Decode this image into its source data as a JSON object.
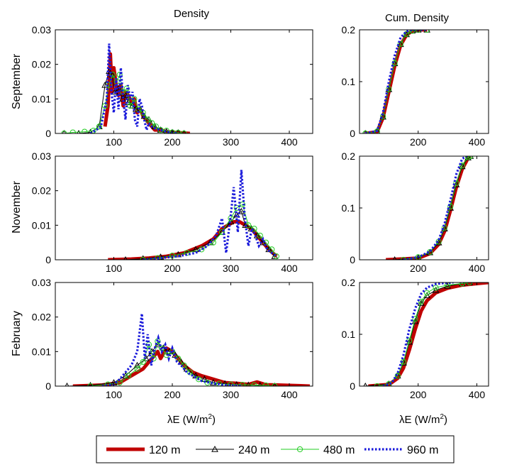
{
  "figure": {
    "col_titles": [
      "Density",
      "Cum. Density"
    ],
    "row_titles": [
      "September",
      "November",
      "February"
    ],
    "xlabel_main": "λE (W/m",
    "xlabel_sup": "2",
    "xlabel_close": ")"
  },
  "legend": {
    "items": [
      {
        "label": "120 m",
        "color": "#c00000",
        "style": "thick-solid",
        "marker": "none"
      },
      {
        "label": "240 m",
        "color": "#000000",
        "style": "thin-solid",
        "marker": "triangle"
      },
      {
        "label": "480 m",
        "color": "#22cc22",
        "style": "thin-solid",
        "marker": "circle"
      },
      {
        "label": "960 m",
        "color": "#1a1adb",
        "style": "dotted",
        "marker": "none"
      }
    ]
  },
  "chart_data": [
    {
      "type": "line",
      "panel": "September density",
      "xlim": [
        0,
        440
      ],
      "ylim": [
        0,
        0.03
      ],
      "xticks": [
        100,
        200,
        300,
        400
      ],
      "yticks": [
        0,
        0.01,
        0.02,
        0.03
      ],
      "ytick_labels": [
        "0",
        "0.01",
        "0.02",
        "0.03"
      ],
      "series": [
        {
          "name": "120 m",
          "x": [
            85,
            90,
            94,
            97,
            100,
            104,
            108,
            112,
            116,
            120,
            125,
            130,
            135,
            140,
            145,
            150,
            155,
            160,
            165,
            170,
            180,
            190,
            200,
            210,
            220,
            230
          ],
          "y": [
            0.002,
            0.008,
            0.023,
            0.012,
            0.019,
            0.014,
            0.011,
            0.014,
            0.008,
            0.012,
            0.011,
            0.009,
            0.01,
            0.006,
            0.007,
            0.005,
            0.004,
            0.003,
            0.002,
            0.001,
            0.001,
            0.0005,
            0.0003,
            0.0002,
            0.0001,
            0
          ]
        },
        {
          "name": "240 m",
          "x": [
            15,
            40,
            60,
            75,
            85,
            92,
            97,
            102,
            108,
            115,
            120,
            125,
            132,
            138,
            145,
            152,
            160,
            170,
            180,
            190,
            200,
            210,
            220
          ],
          "y": [
            0,
            0,
            0.0003,
            0.002,
            0.014,
            0.018,
            0.017,
            0.012,
            0.013,
            0.01,
            0.011,
            0.009,
            0.008,
            0.007,
            0.007,
            0.005,
            0.004,
            0.002,
            0.001,
            0.0005,
            0.0003,
            0.0002,
            0
          ]
        },
        {
          "name": "480 m",
          "x": [
            15,
            30,
            50,
            65,
            75,
            85,
            92,
            98,
            105,
            110,
            115,
            122,
            128,
            135,
            142,
            150,
            158,
            165,
            172,
            180,
            190,
            200,
            210,
            220
          ],
          "y": [
            0,
            0.0003,
            0.0005,
            0.0008,
            0.002,
            0.008,
            0.014,
            0.017,
            0.015,
            0.017,
            0.012,
            0.013,
            0.008,
            0.01,
            0.007,
            0.006,
            0.004,
            0.003,
            0.002,
            0.001,
            0.0008,
            0.0003,
            0.0002,
            0
          ]
        },
        {
          "name": "960 m",
          "x": [
            60,
            70,
            78,
            83,
            88,
            92,
            96,
            100,
            104,
            108,
            112,
            116,
            120,
            124,
            128,
            132,
            136,
            140,
            144,
            148,
            152,
            156,
            160,
            165,
            170,
            180,
            190,
            200,
            210
          ],
          "y": [
            0,
            0.001,
            0.002,
            0.006,
            0.01,
            0.026,
            0.012,
            0.006,
            0.016,
            0.007,
            0.019,
            0.01,
            0.004,
            0.014,
            0.01,
            0.012,
            0.004,
            0.002,
            0.01,
            0.008,
            0.004,
            0.001,
            0.003,
            0.002,
            0.0015,
            0.001,
            0.0005,
            0.0002,
            0
          ]
        }
      ]
    },
    {
      "type": "line",
      "panel": "September cumulative density",
      "xlim": [
        0,
        440
      ],
      "ylim": [
        0,
        0.2
      ],
      "xticks": [
        200,
        400
      ],
      "yticks": [
        0,
        0.1,
        0.2
      ],
      "ytick_labels": [
        "0",
        "0.1",
        "0.2"
      ],
      "series": [
        {
          "name": "120 m",
          "x": [
            20,
            60,
            80,
            100,
            120,
            140,
            160,
            180,
            200,
            230
          ],
          "y": [
            0,
            0.003,
            0.03,
            0.08,
            0.13,
            0.17,
            0.19,
            0.198,
            0.2,
            0.2
          ]
        },
        {
          "name": "240 m",
          "x": [
            20,
            60,
            80,
            100,
            120,
            140,
            160,
            180,
            200,
            230
          ],
          "y": [
            0,
            0.004,
            0.032,
            0.085,
            0.135,
            0.172,
            0.191,
            0.198,
            0.2,
            0.2
          ]
        },
        {
          "name": "480 m",
          "x": [
            20,
            60,
            80,
            100,
            120,
            140,
            160,
            180,
            200,
            230
          ],
          "y": [
            0,
            0.004,
            0.033,
            0.086,
            0.136,
            0.173,
            0.192,
            0.198,
            0.2,
            0.2
          ]
        },
        {
          "name": "960 m",
          "x": [
            20,
            60,
            80,
            100,
            120,
            140,
            160,
            180,
            200,
            230
          ],
          "y": [
            0,
            0.005,
            0.04,
            0.1,
            0.15,
            0.185,
            0.197,
            0.2,
            0.2,
            0.2
          ]
        }
      ]
    },
    {
      "type": "line",
      "panel": "November density",
      "xlim": [
        0,
        440
      ],
      "ylim": [
        0,
        0.03
      ],
      "xticks": [
        100,
        200,
        300,
        400
      ],
      "yticks": [
        0,
        0.01,
        0.02,
        0.03
      ],
      "ytick_labels": [
        "0",
        "0.01",
        "0.02",
        "0.03"
      ],
      "series": [
        {
          "name": "120 m",
          "x": [
            90,
            130,
            160,
            190,
            220,
            250,
            270,
            285,
            295,
            305,
            315,
            325,
            335,
            345,
            355,
            365,
            378
          ],
          "y": [
            0,
            0.0002,
            0.0005,
            0.001,
            0.002,
            0.004,
            0.006,
            0.009,
            0.01,
            0.011,
            0.011,
            0.01,
            0.009,
            0.007,
            0.005,
            0.003,
            0.001
          ]
        },
        {
          "name": "240 m",
          "x": [
            120,
            150,
            180,
            210,
            240,
            265,
            285,
            300,
            310,
            318,
            325,
            335,
            345,
            355,
            365,
            375
          ],
          "y": [
            0,
            0.0003,
            0.0008,
            0.0015,
            0.003,
            0.005,
            0.008,
            0.011,
            0.013,
            0.014,
            0.01,
            0.009,
            0.007,
            0.005,
            0.003,
            0.001
          ]
        },
        {
          "name": "480 m",
          "x": [
            150,
            175,
            200,
            225,
            250,
            270,
            285,
            300,
            310,
            320,
            330,
            340,
            350,
            360,
            370,
            378
          ],
          "y": [
            0,
            0.0005,
            0.0012,
            0.002,
            0.003,
            0.005,
            0.008,
            0.012,
            0.015,
            0.016,
            0.01,
            0.009,
            0.007,
            0.005,
            0.003,
            0.001
          ]
        },
        {
          "name": "960 m",
          "x": [
            150,
            180,
            210,
            240,
            260,
            275,
            285,
            292,
            300,
            305,
            312,
            318,
            324,
            330,
            336,
            342,
            348,
            355,
            362,
            370,
            378
          ],
          "y": [
            0,
            0.0005,
            0.001,
            0.002,
            0.004,
            0.007,
            0.012,
            0.002,
            0.013,
            0.021,
            0.008,
            0.026,
            0.012,
            0.004,
            0.009,
            0.007,
            0.004,
            0.006,
            0.003,
            0.002,
            0.001
          ]
        }
      ]
    },
    {
      "type": "line",
      "panel": "November cumulative density",
      "xlim": [
        0,
        440
      ],
      "ylim": [
        0,
        0.2
      ],
      "xticks": [
        200,
        400
      ],
      "yticks": [
        0,
        0.1,
        0.2
      ],
      "ytick_labels": [
        "0",
        "0.1",
        "0.2"
      ],
      "series": [
        {
          "name": "120 m",
          "x": [
            90,
            200,
            240,
            270,
            290,
            310,
            330,
            350,
            370,
            378
          ],
          "y": [
            0,
            0.003,
            0.012,
            0.03,
            0.055,
            0.095,
            0.14,
            0.175,
            0.196,
            0.2
          ]
        },
        {
          "name": "240 m",
          "x": [
            120,
            200,
            240,
            270,
            290,
            310,
            330,
            350,
            370,
            378
          ],
          "y": [
            0,
            0.004,
            0.014,
            0.033,
            0.06,
            0.1,
            0.145,
            0.18,
            0.197,
            0.2
          ]
        },
        {
          "name": "480 m",
          "x": [
            150,
            200,
            240,
            270,
            290,
            310,
            330,
            350,
            370,
            378
          ],
          "y": [
            0,
            0.005,
            0.015,
            0.035,
            0.062,
            0.103,
            0.148,
            0.182,
            0.198,
            0.2
          ]
        },
        {
          "name": "960 m",
          "x": [
            150,
            200,
            240,
            270,
            290,
            310,
            330,
            350,
            365
          ],
          "y": [
            0,
            0.005,
            0.016,
            0.038,
            0.07,
            0.115,
            0.165,
            0.195,
            0.2
          ]
        }
      ]
    },
    {
      "type": "line",
      "panel": "February density",
      "xlim": [
        0,
        440
      ],
      "ylim": [
        0,
        0.03
      ],
      "xticks": [
        100,
        200,
        300,
        400
      ],
      "yticks": [
        0,
        0.01,
        0.02,
        0.03
      ],
      "ytick_labels": [
        "0",
        "0.01",
        "0.02",
        "0.03"
      ],
      "series": [
        {
          "name": "120 m",
          "x": [
            30,
            80,
            110,
            130,
            150,
            160,
            170,
            175,
            180,
            190,
            200,
            210,
            220,
            235,
            250,
            270,
            290,
            310,
            330,
            345,
            360,
            380,
            400,
            420,
            435
          ],
          "y": [
            0,
            0.0003,
            0.001,
            0.003,
            0.005,
            0.007,
            0.009,
            0.01,
            0.008,
            0.011,
            0.01,
            0.008,
            0.006,
            0.004,
            0.003,
            0.002,
            0.001,
            0.0008,
            0.0005,
            0.0012,
            0.0004,
            0.0003,
            0.0002,
            0.0001,
            0
          ]
        },
        {
          "name": "240 m",
          "x": [
            20,
            60,
            100,
            120,
            140,
            155,
            165,
            175,
            185,
            195,
            205,
            215,
            225,
            240,
            255,
            270,
            290,
            310,
            330,
            350,
            375
          ],
          "y": [
            0,
            0.0002,
            0.001,
            0.003,
            0.006,
            0.008,
            0.01,
            0.012,
            0.011,
            0.01,
            0.009,
            0.007,
            0.005,
            0.003,
            0.002,
            0.001,
            0.0007,
            0.0004,
            0.0003,
            0.0002,
            0
          ]
        },
        {
          "name": "480 m",
          "x": [
            60,
            90,
            110,
            125,
            140,
            150,
            160,
            168,
            175,
            182,
            190,
            200,
            210,
            220,
            230,
            245,
            260,
            280,
            300,
            320,
            340,
            360,
            375
          ],
          "y": [
            0,
            0.0005,
            0.001,
            0.003,
            0.005,
            0.007,
            0.012,
            0.008,
            0.013,
            0.011,
            0.009,
            0.01,
            0.008,
            0.006,
            0.004,
            0.002,
            0.001,
            0.0007,
            0.0005,
            0.0004,
            0.0003,
            0.0002,
            0
          ]
        },
        {
          "name": "960 m",
          "x": [
            80,
            100,
            110,
            120,
            130,
            140,
            148,
            153,
            158,
            164,
            170,
            176,
            182,
            188,
            194,
            200,
            208,
            215,
            225,
            235,
            250,
            270,
            290,
            320
          ],
          "y": [
            0,
            0.0005,
            0.002,
            0.004,
            0.006,
            0.01,
            0.021,
            0.008,
            0.015,
            0.006,
            0.011,
            0.014,
            0.01,
            0.012,
            0.008,
            0.011,
            0.007,
            0.006,
            0.004,
            0.003,
            0.0015,
            0.0008,
            0.0003,
            0
          ]
        }
      ]
    },
    {
      "type": "line",
      "panel": "February cumulative density",
      "xlim": [
        0,
        440
      ],
      "ylim": [
        0,
        0.2
      ],
      "xticks": [
        200,
        400
      ],
      "yticks": [
        0,
        0.1,
        0.2
      ],
      "ytick_labels": [
        "0",
        "0.1",
        "0.2"
      ],
      "series": [
        {
          "name": "120 m",
          "x": [
            30,
            100,
            130,
            150,
            170,
            190,
            210,
            230,
            260,
            300,
            350,
            400,
            440
          ],
          "y": [
            0,
            0.003,
            0.015,
            0.035,
            0.07,
            0.11,
            0.145,
            0.165,
            0.18,
            0.189,
            0.195,
            0.198,
            0.2
          ]
        },
        {
          "name": "240 m",
          "x": [
            20,
            100,
            130,
            150,
            170,
            190,
            210,
            230,
            260,
            300,
            350,
            375
          ],
          "y": [
            0,
            0.004,
            0.02,
            0.045,
            0.085,
            0.125,
            0.16,
            0.175,
            0.185,
            0.193,
            0.198,
            0.2
          ]
        },
        {
          "name": "480 m",
          "x": [
            60,
            100,
            130,
            150,
            170,
            190,
            210,
            230,
            260,
            300,
            350,
            375
          ],
          "y": [
            0,
            0.004,
            0.02,
            0.047,
            0.088,
            0.13,
            0.163,
            0.18,
            0.19,
            0.195,
            0.198,
            0.2
          ]
        },
        {
          "name": "960 m",
          "x": [
            80,
            110,
            130,
            150,
            170,
            190,
            210,
            230,
            260,
            290,
            320
          ],
          "y": [
            0,
            0.006,
            0.025,
            0.06,
            0.11,
            0.15,
            0.178,
            0.19,
            0.197,
            0.199,
            0.2
          ]
        }
      ]
    }
  ]
}
